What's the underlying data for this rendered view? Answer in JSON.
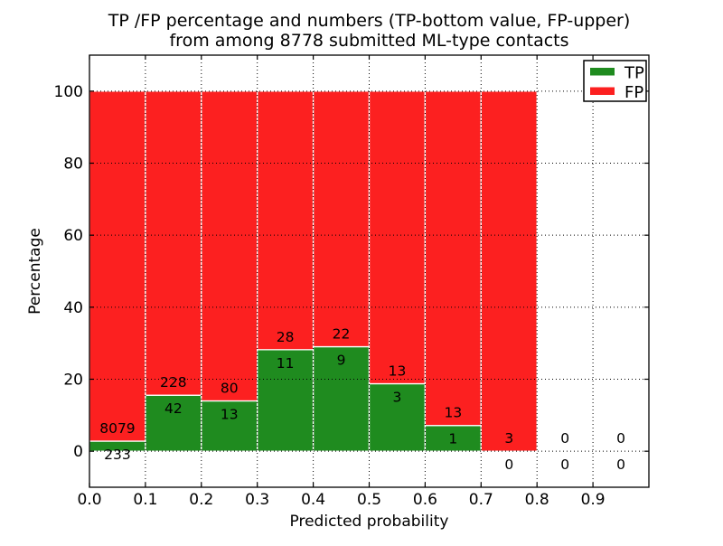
{
  "chart_data": {
    "type": "bar",
    "stacked": true,
    "title_line1": "TP /FP percentage and numbers (TP-bottom value, FP-upper)",
    "title_line2": "from among 8778 submitted ML-type contacts",
    "xlabel": "Predicted probability",
    "ylabel": "Percentage",
    "total_submitted_contacts": 8778,
    "xlim": [
      0.0,
      1.0
    ],
    "ylim": [
      -10,
      110
    ],
    "yticks": [
      0,
      20,
      40,
      60,
      80,
      100
    ],
    "xtick_labels": [
      "0.0",
      "0.1",
      "0.2",
      "0.3",
      "0.4",
      "0.5",
      "0.6",
      "0.7",
      "0.8",
      "0.9"
    ],
    "bin_width": 0.1,
    "grid": "dotted",
    "legend_position": "upper-right",
    "bins": [
      {
        "x0": 0.0,
        "tp": 233,
        "fp": 8079,
        "tp_pct": 2.8
      },
      {
        "x0": 0.1,
        "tp": 42,
        "fp": 228,
        "tp_pct": 15.6
      },
      {
        "x0": 0.2,
        "tp": 13,
        "fp": 80,
        "tp_pct": 14.0
      },
      {
        "x0": 0.3,
        "tp": 11,
        "fp": 28,
        "tp_pct": 28.2
      },
      {
        "x0": 0.4,
        "tp": 9,
        "fp": 22,
        "tp_pct": 29.0
      },
      {
        "x0": 0.5,
        "tp": 3,
        "fp": 13,
        "tp_pct": 18.8
      },
      {
        "x0": 0.6,
        "tp": 1,
        "fp": 13,
        "tp_pct": 7.1
      },
      {
        "x0": 0.7,
        "tp": 0,
        "fp": 3,
        "tp_pct": 0.0
      },
      {
        "x0": 0.8,
        "tp": 0,
        "fp": 0,
        "tp_pct": null
      },
      {
        "x0": 0.9,
        "tp": 0,
        "fp": 0,
        "tp_pct": null
      }
    ],
    "legend": [
      {
        "label": "TP",
        "color": "#1f8b1f"
      },
      {
        "label": "FP",
        "color": "#fc2020"
      }
    ]
  }
}
